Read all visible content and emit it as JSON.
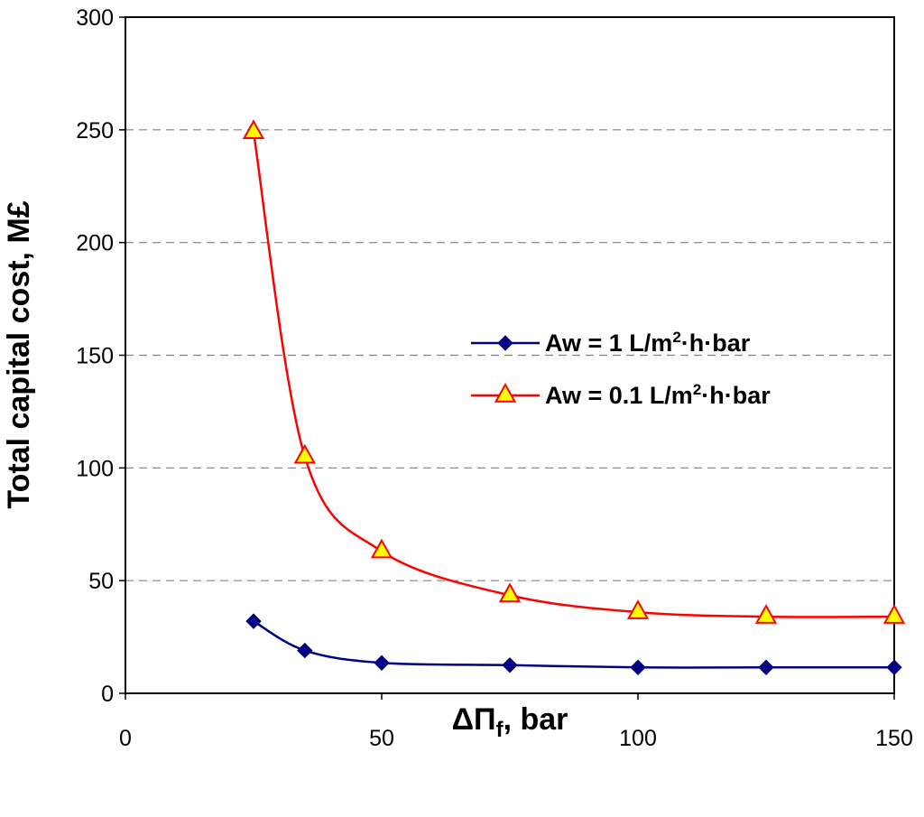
{
  "chart_data": {
    "type": "line",
    "title": "",
    "xlabel": "ΔΠf, bar",
    "xlabel_parts": {
      "symbol": "ΔΠ",
      "subscript": "f",
      "rest": ", bar"
    },
    "ylabel": "Total capital cost, M£",
    "xlim": [
      0,
      150
    ],
    "ylim": [
      0,
      300
    ],
    "xticks": [
      "0",
      "50",
      "100",
      "150"
    ],
    "yticks": [
      "0",
      "50",
      "100",
      "150",
      "200",
      "250",
      "300"
    ],
    "grid": "horizontal dashed",
    "legend_position": "center-right",
    "series": [
      {
        "name": "Aw =  1 L/m²·h·bar",
        "name_parts": {
          "prefix": "Aw =  1 L/m",
          "sup": "2",
          "suffix": "·h·bar"
        },
        "color": "#000080",
        "marker": "diamond",
        "x": [
          25,
          35,
          50,
          75,
          100,
          125,
          150
        ],
        "y": [
          32,
          19,
          13.5,
          12.5,
          11.5,
          11.5,
          11.5
        ]
      },
      {
        "name": "Aw =  0.1 L/m²·h·bar",
        "name_parts": {
          "prefix": "Aw =  0.1 L/m",
          "sup": "2",
          "suffix": "·h·bar"
        },
        "color": "#ff0000",
        "marker": "triangle",
        "marker_fill": "#ffff00",
        "x": [
          25,
          35,
          50,
          75,
          100,
          125,
          150
        ],
        "y": [
          249,
          105,
          63,
          43.5,
          36,
          34,
          34
        ]
      }
    ]
  }
}
